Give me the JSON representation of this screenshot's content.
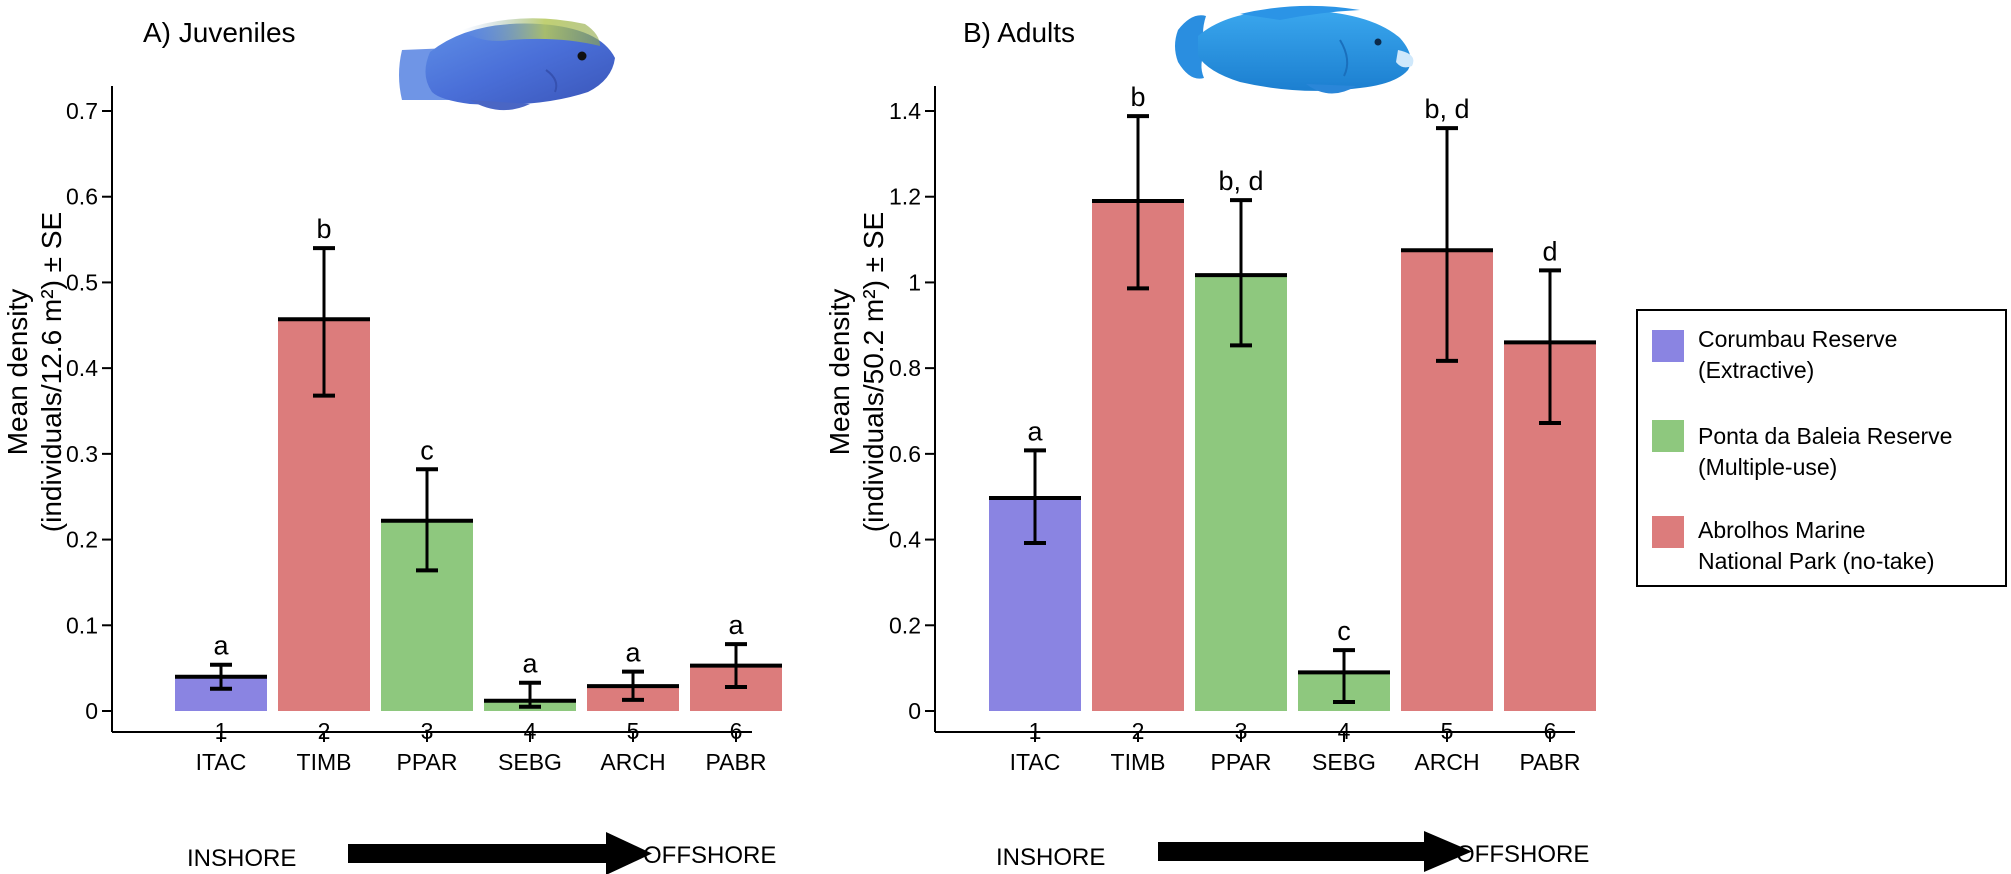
{
  "colors": {
    "extractive": "#8a84e2",
    "multiple_use": "#8ec87e",
    "no_take": "#dc7c7c"
  },
  "chart_data": [
    {
      "type": "bar",
      "title": "A) Juveniles",
      "ylabel_line1": "Mean density",
      "ylabel_line2": "(individuals/12.6 m²) ± SE",
      "ylim": [
        0,
        0.7
      ],
      "yticks": [
        "0",
        "0.1",
        "0.2",
        "0.3",
        "0.4",
        "0.5",
        "0.6",
        "0.7"
      ],
      "ytick_values": [
        0,
        0.1,
        0.2,
        0.3,
        0.4,
        0.5,
        0.6,
        0.7
      ],
      "categories": [
        {
          "num": "1",
          "site": "ITAC",
          "zone": "extractive"
        },
        {
          "num": "2",
          "site": "TIMB",
          "zone": "no_take"
        },
        {
          "num": "3",
          "site": "PPAR",
          "zone": "multiple_use"
        },
        {
          "num": "4",
          "site": "SEBG",
          "zone": "multiple_use"
        },
        {
          "num": "5",
          "site": "ARCH",
          "zone": "no_take"
        },
        {
          "num": "6",
          "site": "PABR",
          "zone": "no_take"
        }
      ],
      "values": [
        0.04,
        0.457,
        0.222,
        0.012,
        0.029,
        0.053
      ],
      "err_low": [
        0.026,
        0.368,
        0.164,
        0.005,
        0.013,
        0.028
      ],
      "err_high": [
        0.054,
        0.54,
        0.282,
        0.033,
        0.046,
        0.078
      ],
      "labels": [
        "a",
        "b",
        "c",
        "a",
        "a",
        "a"
      ],
      "direction_start": "INSHORE",
      "direction_end": "OFFSHORE"
    },
    {
      "type": "bar",
      "title": "B) Adults",
      "ylabel_line1": "Mean density",
      "ylabel_line2": "(individuals/50.2 m²) ± SE",
      "ylim": [
        0,
        1.4
      ],
      "yticks": [
        "0",
        "0.2",
        "0.4",
        "0.6",
        "0.8",
        "1",
        "1.2",
        "1.4"
      ],
      "ytick_values": [
        0,
        0.2,
        0.4,
        0.6,
        0.8,
        1.0,
        1.2,
        1.4
      ],
      "categories": [
        {
          "num": "1",
          "site": "ITAC",
          "zone": "extractive"
        },
        {
          "num": "2",
          "site": "TIMB",
          "zone": "no_take"
        },
        {
          "num": "3",
          "site": "PPAR",
          "zone": "multiple_use"
        },
        {
          "num": "4",
          "site": "SEBG",
          "zone": "multiple_use"
        },
        {
          "num": "5",
          "site": "ARCH",
          "zone": "no_take"
        },
        {
          "num": "6",
          "site": "PABR",
          "zone": "no_take"
        }
      ],
      "values": [
        0.497,
        1.19,
        1.017,
        0.09,
        1.075,
        0.86
      ],
      "err_low": [
        0.392,
        0.986,
        0.853,
        0.021,
        0.817,
        0.672
      ],
      "err_high": [
        0.608,
        1.388,
        1.192,
        0.142,
        1.36,
        1.028
      ],
      "labels": [
        "a",
        "b",
        "b, d",
        "c",
        "b, d",
        "d"
      ],
      "direction_start": "INSHORE",
      "direction_end": "OFFSHORE"
    }
  ],
  "legend": [
    {
      "zone": "extractive",
      "line1": "Corumbau Reserve",
      "line2": "(Extractive)"
    },
    {
      "zone": "multiple_use",
      "line1": "Ponta da Baleia Reserve",
      "line2": "(Multiple-use)"
    },
    {
      "zone": "no_take",
      "line1": "Abrolhos Marine",
      "line2": "National Park (no-take)"
    }
  ]
}
